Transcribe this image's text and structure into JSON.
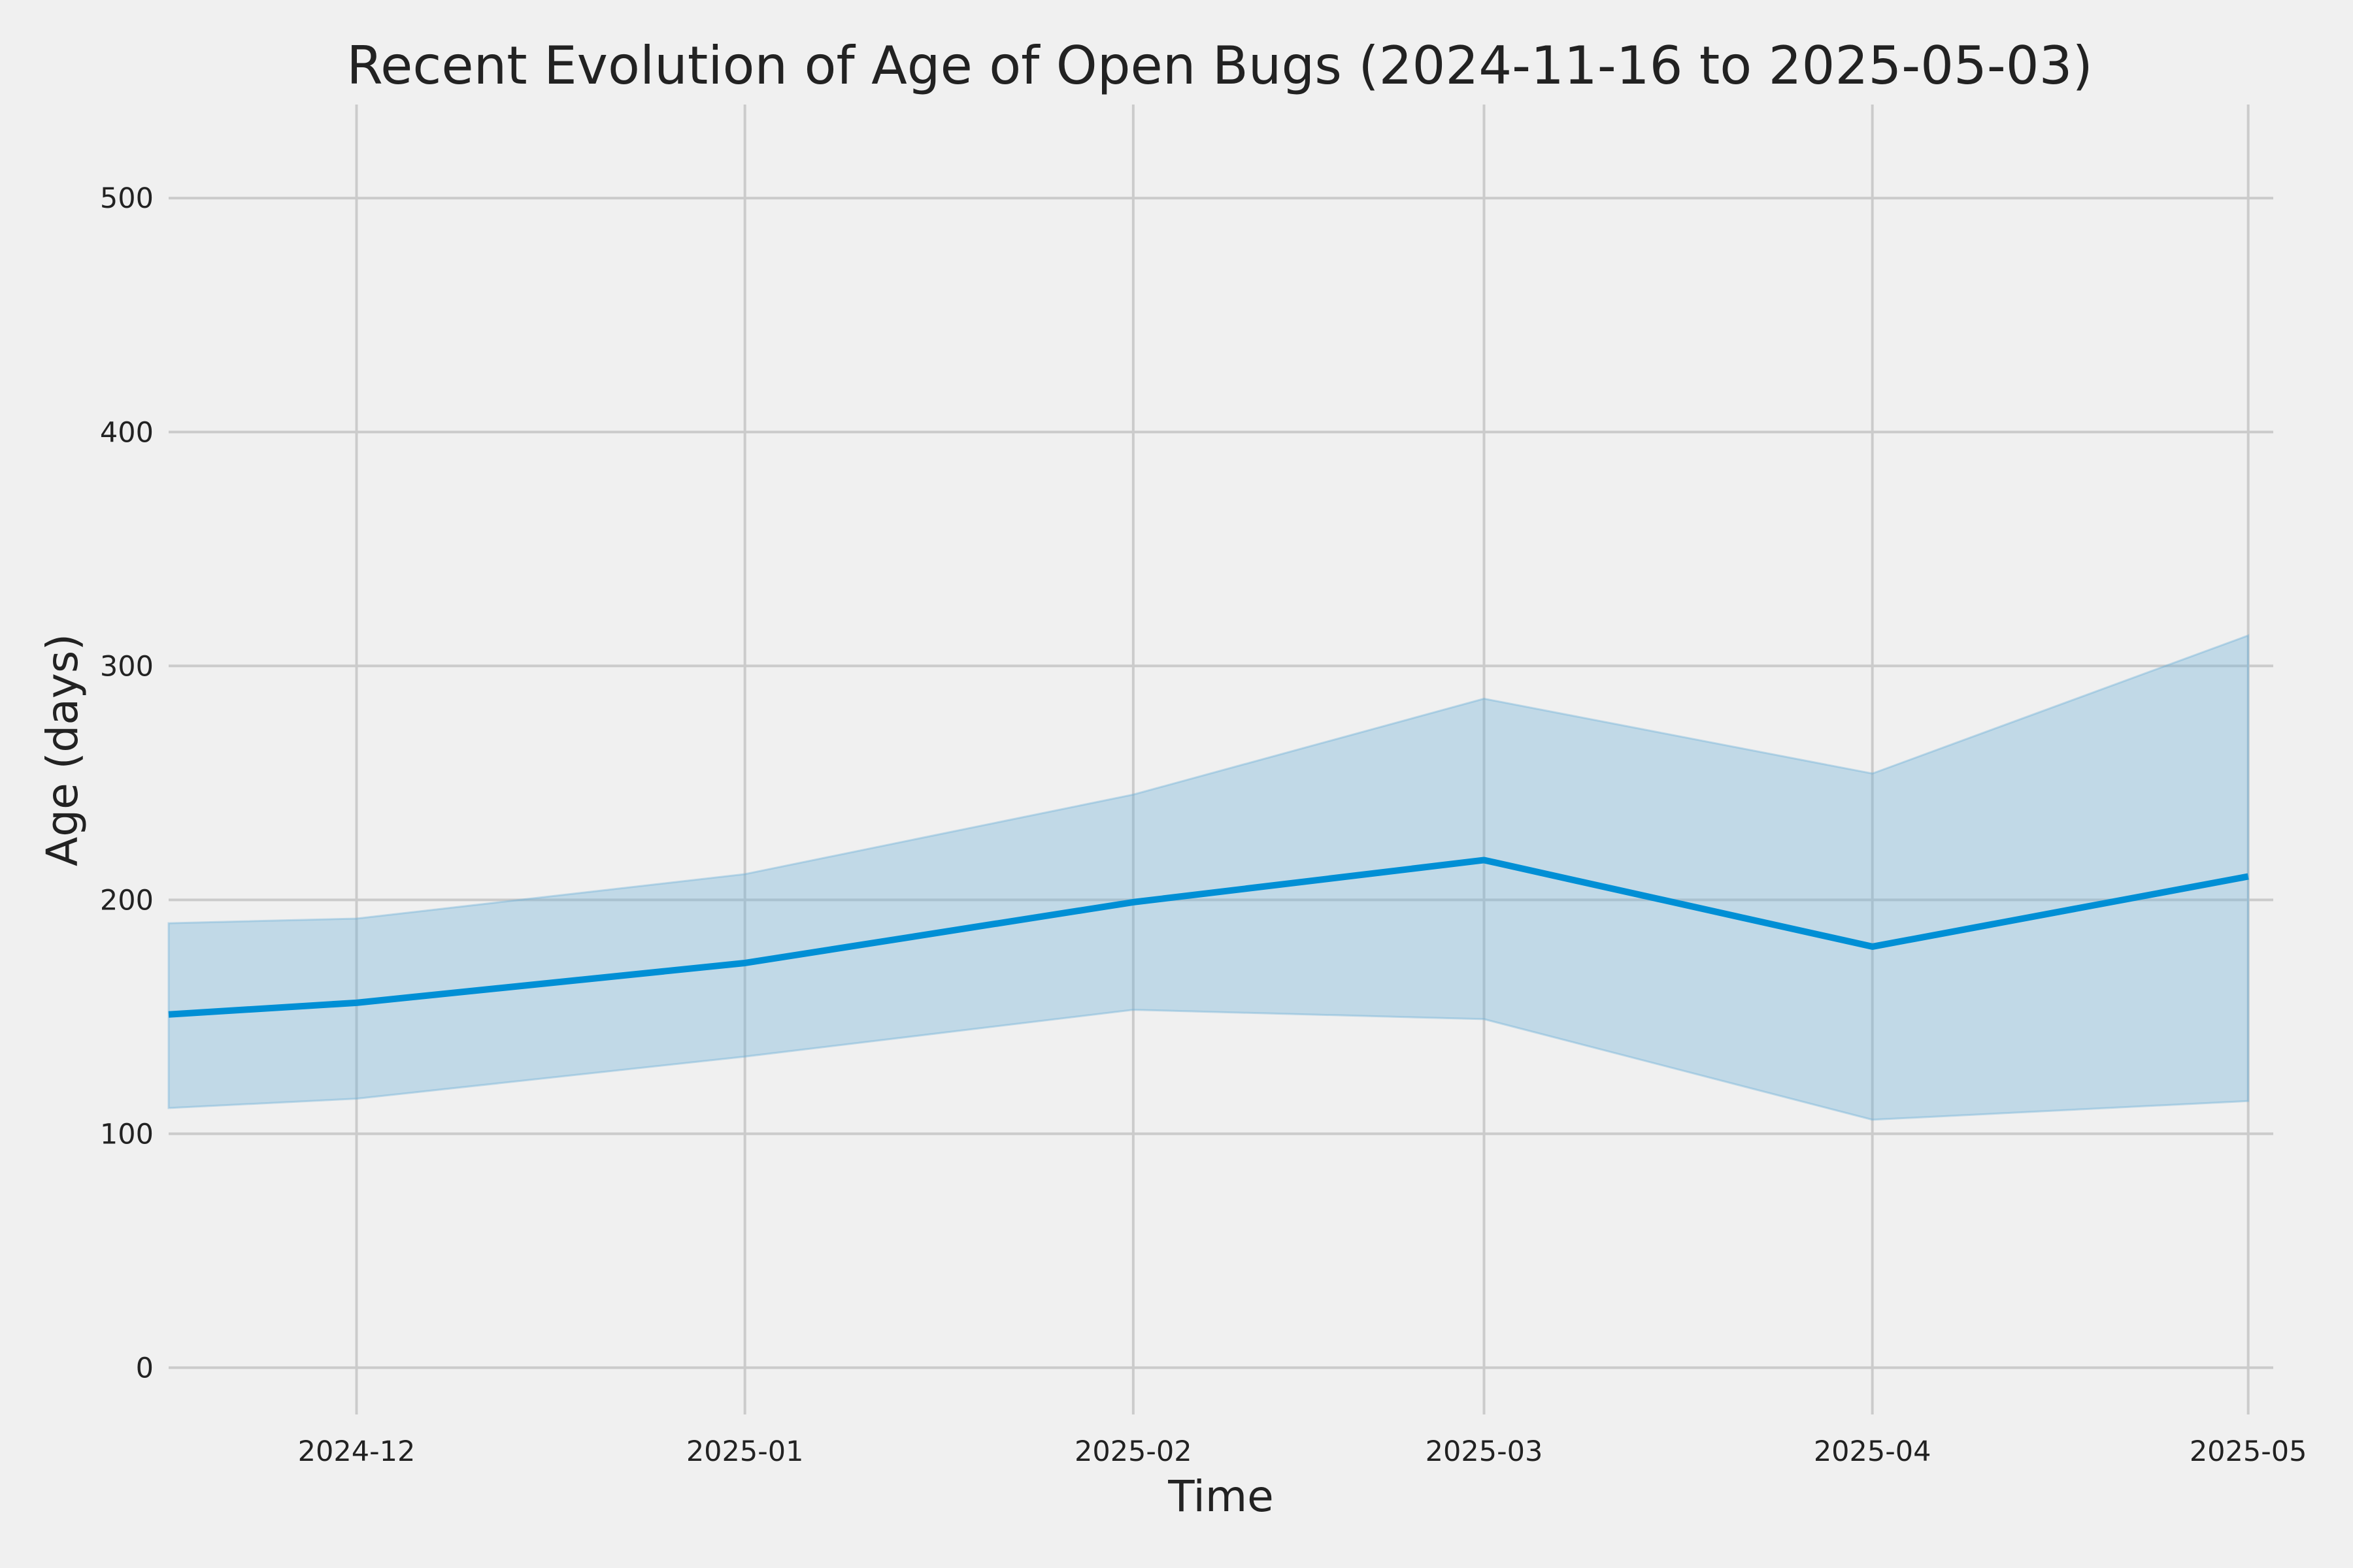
{
  "chart_data": {
    "type": "area",
    "title": "Recent Evolution of Age of Open Bugs (2024-11-16 to 2025-05-03)",
    "xlabel": "Time",
    "ylabel": "Age (days)",
    "xlim": [
      "2024-11-16",
      "2025-05-03"
    ],
    "ylim": [
      -20,
      540
    ],
    "x_ticks": [
      "2024-12-01",
      "2025-01-01",
      "2025-02-01",
      "2025-03-01",
      "2025-04-01",
      "2025-05-01"
    ],
    "x_tick_labels": [
      "2024-12",
      "2025-01",
      "2025-02",
      "2025-03",
      "2025-04",
      "2025-05"
    ],
    "y_ticks": [
      0,
      100,
      200,
      300,
      400,
      500
    ],
    "y_tick_labels": [
      "0",
      "100",
      "200",
      "300",
      "400",
      "500"
    ],
    "grid": true,
    "series": [
      {
        "type": "line",
        "color": "#008fd5",
        "x": [
          "2024-11-16",
          "2024-12-01",
          "2025-01-01",
          "2025-02-01",
          "2025-03-01",
          "2025-04-01",
          "2025-05-01"
        ],
        "values": [
          151,
          156,
          173,
          199,
          217,
          180,
          210
        ]
      },
      {
        "type": "band",
        "color": "#6baed6",
        "x": [
          "2024-11-16",
          "2024-12-01",
          "2025-01-01",
          "2025-02-01",
          "2025-03-01",
          "2025-04-01",
          "2025-05-01"
        ],
        "upper": [
          190,
          192,
          211,
          245,
          286,
          254,
          313
        ],
        "lower": [
          111,
          115,
          133,
          153,
          149,
          106,
          114
        ]
      }
    ]
  }
}
